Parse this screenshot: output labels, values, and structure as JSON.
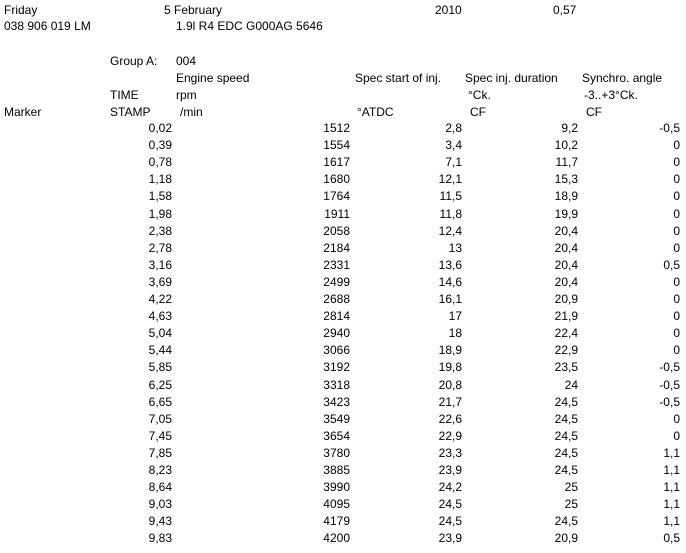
{
  "header": {
    "day": "Friday",
    "date": "5 February",
    "year": "2010",
    "version": "0,57",
    "part_number": "038 906 019 LM",
    "engine": "1.9l R4 EDC G000AG  5646"
  },
  "group": {
    "label": "Group A:",
    "number": "004"
  },
  "columns": {
    "marker": "Marker",
    "time_line1": "TIME",
    "time_line2": "STAMP",
    "speed_line1": "Engine speed",
    "speed_line2": "rpm",
    "speed_line3": "/min",
    "start_line1": "Spec start of inj.",
    "start_line3": "°ATDC",
    "duration_line1": "Spec inj. duration",
    "duration_line2": "°Ck.",
    "duration_line3": "CF",
    "synchro_line1": "Synchro. angle",
    "synchro_line2": "-3..+3°Ck.",
    "synchro_line3": "CF"
  },
  "rows": [
    {
      "time": "0,02",
      "speed": "1512",
      "start": "2,8",
      "duration": "9,2",
      "synchro": "-0,5"
    },
    {
      "time": "0,39",
      "speed": "1554",
      "start": "3,4",
      "duration": "10,2",
      "synchro": "0"
    },
    {
      "time": "0,78",
      "speed": "1617",
      "start": "7,1",
      "duration": "11,7",
      "synchro": "0"
    },
    {
      "time": "1,18",
      "speed": "1680",
      "start": "12,1",
      "duration": "15,3",
      "synchro": "0"
    },
    {
      "time": "1,58",
      "speed": "1764",
      "start": "11,5",
      "duration": "18,9",
      "synchro": "0"
    },
    {
      "time": "1,98",
      "speed": "1911",
      "start": "11,8",
      "duration": "19,9",
      "synchro": "0"
    },
    {
      "time": "2,38",
      "speed": "2058",
      "start": "12,4",
      "duration": "20,4",
      "synchro": "0"
    },
    {
      "time": "2,78",
      "speed": "2184",
      "start": "13",
      "duration": "20,4",
      "synchro": "0"
    },
    {
      "time": "3,16",
      "speed": "2331",
      "start": "13,6",
      "duration": "20,4",
      "synchro": "0,5"
    },
    {
      "time": "3,69",
      "speed": "2499",
      "start": "14,6",
      "duration": "20,4",
      "synchro": "0"
    },
    {
      "time": "4,22",
      "speed": "2688",
      "start": "16,1",
      "duration": "20,9",
      "synchro": "0"
    },
    {
      "time": "4,63",
      "speed": "2814",
      "start": "17",
      "duration": "21,9",
      "synchro": "0"
    },
    {
      "time": "5,04",
      "speed": "2940",
      "start": "18",
      "duration": "22,4",
      "synchro": "0"
    },
    {
      "time": "5,44",
      "speed": "3066",
      "start": "18,9",
      "duration": "22,9",
      "synchro": "0"
    },
    {
      "time": "5,85",
      "speed": "3192",
      "start": "19,8",
      "duration": "23,5",
      "synchro": "-0,5"
    },
    {
      "time": "6,25",
      "speed": "3318",
      "start": "20,8",
      "duration": "24",
      "synchro": "-0,5"
    },
    {
      "time": "6,65",
      "speed": "3423",
      "start": "21,7",
      "duration": "24,5",
      "synchro": "-0,5"
    },
    {
      "time": "7,05",
      "speed": "3549",
      "start": "22,6",
      "duration": "24,5",
      "synchro": "0"
    },
    {
      "time": "7,45",
      "speed": "3654",
      "start": "22,9",
      "duration": "24,5",
      "synchro": "0"
    },
    {
      "time": "7,85",
      "speed": "3780",
      "start": "23,3",
      "duration": "24,5",
      "synchro": "1,1"
    },
    {
      "time": "8,23",
      "speed": "3885",
      "start": "23,9",
      "duration": "24,5",
      "synchro": "1,1"
    },
    {
      "time": "8,64",
      "speed": "3990",
      "start": "24,2",
      "duration": "25",
      "synchro": "1,1"
    },
    {
      "time": "9,03",
      "speed": "4095",
      "start": "24,5",
      "duration": "25",
      "synchro": "1,1"
    },
    {
      "time": "9,43",
      "speed": "4179",
      "start": "24,5",
      "duration": "24,5",
      "synchro": "1,1"
    },
    {
      "time": "9,83",
      "speed": "4200",
      "start": "23,9",
      "duration": "20,9",
      "synchro": "0,5"
    }
  ]
}
